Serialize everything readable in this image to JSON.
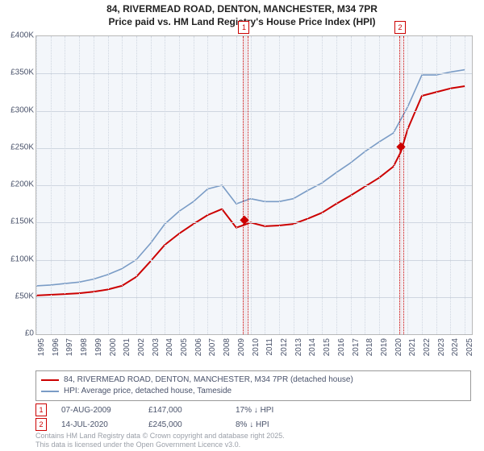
{
  "title": {
    "line1": "84, RIVERMEAD ROAD, DENTON, MANCHESTER, M34 7PR",
    "line2": "Price paid vs. HM Land Registry's House Price Index (HPI)"
  },
  "chart": {
    "type": "line",
    "background_color": "#f3f6fa",
    "grid_color": "#cfd6e0",
    "border_color": "#b8b8b8",
    "x_axis": {
      "min": 1995,
      "max": 2025.5,
      "ticks": [
        1995,
        1996,
        1997,
        1998,
        1999,
        2000,
        2001,
        2002,
        2003,
        2004,
        2005,
        2006,
        2007,
        2008,
        2009,
        2010,
        2011,
        2012,
        2013,
        2014,
        2015,
        2016,
        2017,
        2018,
        2019,
        2020,
        2021,
        2022,
        2023,
        2024,
        2025
      ]
    },
    "y_axis": {
      "min": 0,
      "max": 400000,
      "tick_step": 50000,
      "tick_prefix": "£",
      "tick_suffix_k_divisor": 1000,
      "labels": [
        "£0",
        "£50K",
        "£100K",
        "£150K",
        "£200K",
        "£250K",
        "£300K",
        "£350K",
        "£400K"
      ]
    },
    "series": [
      {
        "name": "84, RIVERMEAD ROAD, DENTON, MANCHESTER, M34 7PR (detached house)",
        "color": "#cc0000",
        "line_width": 2,
        "points": [
          [
            1995,
            52000
          ],
          [
            1996,
            53000
          ],
          [
            1997,
            54000
          ],
          [
            1998,
            55000
          ],
          [
            1999,
            57000
          ],
          [
            2000,
            60000
          ],
          [
            2001,
            65000
          ],
          [
            2002,
            77000
          ],
          [
            2003,
            98000
          ],
          [
            2004,
            120000
          ],
          [
            2005,
            135000
          ],
          [
            2006,
            148000
          ],
          [
            2007,
            160000
          ],
          [
            2008,
            168000
          ],
          [
            2009,
            143000
          ],
          [
            2009.6,
            147000
          ],
          [
            2010,
            150000
          ],
          [
            2011,
            145000
          ],
          [
            2012,
            146000
          ],
          [
            2013,
            148000
          ],
          [
            2014,
            155000
          ],
          [
            2015,
            163000
          ],
          [
            2016,
            175000
          ],
          [
            2017,
            186000
          ],
          [
            2018,
            198000
          ],
          [
            2019,
            210000
          ],
          [
            2020,
            225000
          ],
          [
            2020.53,
            245000
          ],
          [
            2021,
            275000
          ],
          [
            2022,
            320000
          ],
          [
            2023,
            325000
          ],
          [
            2024,
            330000
          ],
          [
            2025,
            333000
          ]
        ]
      },
      {
        "name": "HPI: Average price, detached house, Tameside",
        "color": "#7a9cc6",
        "line_width": 1.6,
        "points": [
          [
            1995,
            65000
          ],
          [
            1996,
            66000
          ],
          [
            1997,
            68000
          ],
          [
            1998,
            70000
          ],
          [
            1999,
            74000
          ],
          [
            2000,
            80000
          ],
          [
            2001,
            88000
          ],
          [
            2002,
            100000
          ],
          [
            2003,
            122000
          ],
          [
            2004,
            148000
          ],
          [
            2005,
            165000
          ],
          [
            2006,
            178000
          ],
          [
            2007,
            195000
          ],
          [
            2008,
            200000
          ],
          [
            2009,
            175000
          ],
          [
            2010,
            182000
          ],
          [
            2011,
            178000
          ],
          [
            2012,
            178000
          ],
          [
            2013,
            182000
          ],
          [
            2014,
            193000
          ],
          [
            2015,
            203000
          ],
          [
            2016,
            217000
          ],
          [
            2017,
            230000
          ],
          [
            2018,
            245000
          ],
          [
            2019,
            258000
          ],
          [
            2020,
            270000
          ],
          [
            2021,
            305000
          ],
          [
            2022,
            348000
          ],
          [
            2023,
            348000
          ],
          [
            2024,
            352000
          ],
          [
            2025,
            355000
          ]
        ]
      }
    ],
    "markers": [
      {
        "label": "1",
        "x": 2009.6,
        "region_half_width": 0.12,
        "point_y": 147000
      },
      {
        "label": "2",
        "x": 2020.53,
        "region_half_width": 0.12,
        "point_y": 245000
      }
    ]
  },
  "legend": {
    "rows": [
      {
        "color": "#cc0000",
        "label": "84, RIVERMEAD ROAD, DENTON, MANCHESTER, M34 7PR (detached house)"
      },
      {
        "color": "#7a9cc6",
        "label": "HPI: Average price, detached house, Tameside"
      }
    ]
  },
  "events": [
    {
      "num": "1",
      "date": "07-AUG-2009",
      "price": "£147,000",
      "delta": "17% ↓ HPI"
    },
    {
      "num": "2",
      "date": "14-JUL-2020",
      "price": "£245,000",
      "delta": "8% ↓ HPI"
    }
  ],
  "footer": {
    "line1": "Contains HM Land Registry data © Crown copyright and database right 2025.",
    "line2": "This data is licensed under the Open Government Licence v3.0."
  },
  "style": {
    "title_fontsize": 12,
    "axis_label_color": "#4a536b",
    "axis_fontsize": 10,
    "legend_fontsize": 10,
    "footer_color": "#9a9fa8"
  }
}
